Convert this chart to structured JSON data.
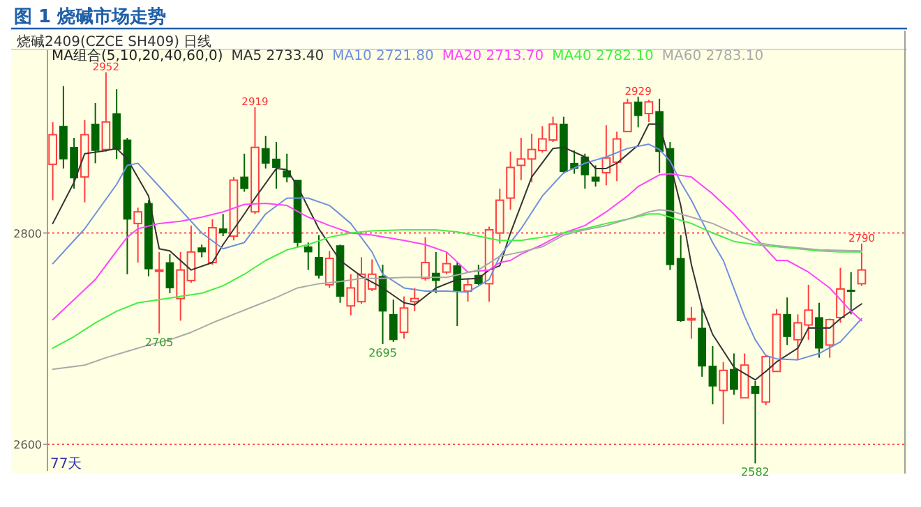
{
  "chart_data": {
    "type": "candlestick",
    "title": "图 1  烧碱市场走势",
    "subtitle": "烧碱2409(CZCE SH409)  日线",
    "legend_title": "MA组合(5,10,20,40,60,0)",
    "legend": "top left",
    "grid": "y",
    "categories": [
      null,
      null,
      null,
      null,
      null,
      null,
      null,
      null,
      null,
      null,
      null,
      null,
      null,
      null,
      null,
      null,
      null,
      null,
      null,
      null,
      null,
      null,
      null,
      null,
      null,
      null,
      null,
      null,
      null,
      null,
      null,
      null,
      null,
      null,
      null,
      null,
      null,
      null,
      null,
      null,
      null,
      null,
      null,
      null,
      null,
      null,
      null,
      null,
      null,
      null,
      null,
      null,
      null,
      null,
      null,
      null,
      null,
      null,
      null,
      null,
      null,
      null,
      null,
      null,
      null,
      null,
      null,
      null,
      null,
      null,
      null,
      null,
      null,
      null,
      null,
      null,
      null
    ],
    "ylim": [
      2575,
      2973
    ],
    "yticks": [
      2600,
      2800
    ],
    "ohlc": [
      [
        2865,
        2905,
        2831,
        2893
      ],
      [
        2901,
        2939,
        2861,
        2870
      ],
      [
        2881,
        2890,
        2842,
        2852
      ],
      [
        2853,
        2907,
        2829,
        2893
      ],
      [
        2903,
        2923,
        2866,
        2878
      ],
      [
        2879,
        2952,
        2877,
        2905
      ],
      [
        2913,
        2936,
        2870,
        2879
      ],
      [
        2888,
        2890,
        2761,
        2813
      ],
      [
        2809,
        2824,
        2772,
        2820
      ],
      [
        2828,
        2831,
        2759,
        2766
      ],
      [
        2764,
        2782,
        2705,
        2765
      ],
      [
        2772,
        2780,
        2743,
        2748
      ],
      [
        2738,
        2782,
        2717,
        2765
      ],
      [
        2755,
        2807,
        2753,
        2782
      ],
      [
        2786,
        2789,
        2777,
        2782
      ],
      [
        2772,
        2813,
        2770,
        2805
      ],
      [
        2804,
        2818,
        2797,
        2800
      ],
      [
        2797,
        2853,
        2793,
        2850
      ],
      [
        2853,
        2875,
        2839,
        2842
      ],
      [
        2820,
        2919,
        2818,
        2881
      ],
      [
        2880,
        2892,
        2861,
        2866
      ],
      [
        2870,
        2886,
        2842,
        2862
      ],
      [
        2859,
        2875,
        2848,
        2853
      ],
      [
        2850,
        2850,
        2787,
        2791
      ],
      [
        2787,
        2791,
        2765,
        2782
      ],
      [
        2777,
        2798,
        2757,
        2760
      ],
      [
        2751,
        2783,
        2748,
        2776
      ],
      [
        2788,
        2789,
        2734,
        2740
      ],
      [
        2731,
        2761,
        2722,
        2748
      ],
      [
        2735,
        2777,
        2733,
        2761
      ],
      [
        2747,
        2775,
        2745,
        2761
      ],
      [
        2759,
        2770,
        2695,
        2726
      ],
      [
        2723,
        2737,
        2697,
        2699
      ],
      [
        2706,
        2740,
        2700,
        2729
      ],
      [
        2735,
        2748,
        2726,
        2738
      ],
      [
        2757,
        2796,
        2755,
        2772
      ],
      [
        2762,
        2782,
        2743,
        2755
      ],
      [
        2763,
        2782,
        2761,
        2771
      ],
      [
        2769,
        2772,
        2712,
        2745
      ],
      [
        2745,
        2757,
        2735,
        2751
      ],
      [
        2760,
        2770,
        2751,
        2752
      ],
      [
        2752,
        2806,
        2735,
        2803
      ],
      [
        2800,
        2842,
        2790,
        2831
      ],
      [
        2833,
        2877,
        2822,
        2862
      ],
      [
        2864,
        2890,
        2850,
        2870
      ],
      [
        2870,
        2894,
        2848,
        2879
      ],
      [
        2878,
        2901,
        2876,
        2889
      ],
      [
        2888,
        2910,
        2886,
        2903
      ],
      [
        2903,
        2910,
        2856,
        2858
      ],
      [
        2866,
        2878,
        2856,
        2861
      ],
      [
        2872,
        2875,
        2842,
        2855
      ],
      [
        2853,
        2864,
        2844,
        2849
      ],
      [
        2857,
        2902,
        2845,
        2871
      ],
      [
        2867,
        2896,
        2849,
        2889
      ],
      [
        2896,
        2927,
        2896,
        2923
      ],
      [
        2924,
        2929,
        2900,
        2911
      ],
      [
        2913,
        2926,
        2905,
        2924
      ],
      [
        2915,
        2927,
        2857,
        2877
      ],
      [
        2880,
        2886,
        2765,
        2770
      ],
      [
        2776,
        2798,
        2716,
        2717
      ],
      [
        2718,
        2730,
        2700,
        2719
      ],
      [
        2710,
        2729,
        2664,
        2674
      ],
      [
        2674,
        2693,
        2638,
        2655
      ],
      [
        2651,
        2678,
        2619,
        2670
      ],
      [
        2671,
        2686,
        2647,
        2652
      ],
      [
        2644,
        2686,
        2644,
        2675
      ],
      [
        2655,
        2660,
        2582,
        2648
      ],
      [
        2640,
        2685,
        2637,
        2683
      ],
      [
        2669,
        2728,
        2669,
        2723
      ],
      [
        2723,
        2739,
        2694,
        2702
      ],
      [
        2699,
        2723,
        2680,
        2715
      ],
      [
        2713,
        2751,
        2699,
        2727
      ],
      [
        2720,
        2734,
        2682,
        2691
      ],
      [
        2694,
        2719,
        2682,
        2718
      ],
      [
        2720,
        2767,
        2715,
        2747
      ],
      [
        2746,
        2763,
        2723,
        2745
      ],
      [
        2752,
        2790,
        2750,
        2765
      ]
    ],
    "colors": [
      "#ff4040",
      "#006400",
      "#006400",
      "#ff4040",
      "#006400",
      "#ff4040",
      "#006400",
      "#006400",
      "#ff4040",
      "#006400",
      "#ff4040",
      "#006400",
      "#ff4040",
      "#ff4040",
      "#006400",
      "#ff4040",
      "#006400",
      "#ff4040",
      "#006400",
      "#ff4040",
      "#006400",
      "#006400",
      "#006400",
      "#006400",
      "#006400",
      "#006400",
      "#ff4040",
      "#006400",
      "#ff4040",
      "#ff4040",
      "#ff4040",
      "#006400",
      "#006400",
      "#ff4040",
      "#ff4040",
      "#ff4040",
      "#006400",
      "#ff4040",
      "#006400",
      "#ff4040",
      "#006400",
      "#ff4040",
      "#ff4040",
      "#ff4040",
      "#ff4040",
      "#ff4040",
      "#ff4040",
      "#ff4040",
      "#006400",
      "#006400",
      "#006400",
      "#006400",
      "#ff4040",
      "#ff4040",
      "#ff4040",
      "#006400",
      "#ff4040",
      "#006400",
      "#006400",
      "#006400",
      "#ff4040",
      "#006400",
      "#006400",
      "#ff4040",
      "#006400",
      "#ff4040",
      "#006400",
      "#ff4040",
      "#ff4040",
      "#006400",
      "#ff4040",
      "#ff4040",
      "#006400",
      "#ff4040",
      "#ff4040",
      "#006400",
      "#ff4040"
    ],
    "series": [
      {
        "name": "MA5 2733.40",
        "type": "line",
        "color": "#333333",
        "values": [
          2809,
          null,
          2848,
          2875,
          null,
          2878,
          2880,
          2870,
          null,
          2835,
          2785,
          2783,
          null,
          2765,
          null,
          2772,
          2789,
          null,
          2818,
          2833,
          null,
          2861,
          2860,
          2844,
          null,
          2804,
          null,
          2774,
          null,
          2759,
          null,
          2748,
          null,
          2734,
          2732,
          null,
          2748,
          null,
          2756,
          null,
          2757,
          2765,
          2769,
          2800,
          null,
          2853,
          null,
          2880,
          2881,
          null,
          2872,
          2861,
          2861,
          2866,
          null,
          2883,
          2903,
          2903,
          2866,
          2826,
          2770,
          2730,
          2704,
          null,
          2673,
          null,
          2661,
          2669,
          2678,
          null,
          2691,
          2710,
          null,
          2710,
          2719,
          null,
          2733
        ]
      },
      {
        "name": "MA10 2721.80",
        "type": "line",
        "color": "#6f8fdf",
        "values": [
          2771,
          null,
          null,
          2804,
          null,
          null,
          2846,
          2864,
          2866,
          null,
          2844,
          null,
          2822,
          null,
          2800,
          null,
          2785,
          null,
          2791,
          null,
          2818,
          null,
          2833,
          null,
          2833,
          null,
          2826,
          null,
          2809,
          null,
          2782,
          2761,
          null,
          2748,
          null,
          2745,
          null,
          2745,
          null,
          2744,
          null,
          2756,
          2778,
          null,
          2804,
          null,
          2835,
          null,
          2857,
          null,
          2866,
          null,
          2872,
          null,
          2880,
          null,
          2884,
          2879,
          2868,
          2848,
          2831,
          null,
          2791,
          2774,
          null,
          2721,
          2699,
          2684,
          2681,
          null,
          2680,
          null,
          2686,
          null,
          2697,
          2708,
          2719
        ]
      },
      {
        "name": "MA20 2713.70",
        "type": "line",
        "color": "#ff44ff",
        "values": [
          2718,
          null,
          2737,
          null,
          2756,
          null,
          2783,
          2796,
          2804,
          null,
          2809,
          null,
          2811,
          null,
          2815,
          null,
          2820,
          null,
          2827,
          null,
          2828,
          null,
          2826,
          null,
          2815,
          null,
          2807,
          null,
          2800,
          null,
          2798,
          null,
          null,
          2793,
          null,
          2789,
          null,
          2782,
          null,
          2763,
          null,
          2765,
          2772,
          2774,
          2780,
          null,
          2789,
          null,
          2800,
          null,
          2807,
          null,
          2820,
          null,
          2835,
          2844,
          null,
          2855,
          2856,
          null,
          2853,
          null,
          2837,
          null,
          2818,
          null,
          2796,
          null,
          2774,
          2774,
          null,
          2763,
          null,
          2748,
          null,
          2726,
          2717
        ]
      },
      {
        "name": "MA40 2782.10",
        "type": "line",
        "color": "#44ee44",
        "values": [
          2691,
          null,
          2702,
          null,
          2715,
          null,
          2726,
          null,
          2734,
          null,
          2737,
          null,
          2740,
          null,
          2743,
          null,
          2750,
          null,
          2761,
          null,
          2774,
          null,
          2784,
          null,
          2789,
          null,
          2796,
          null,
          2800,
          null,
          2802,
          null,
          null,
          2803,
          null,
          null,
          2803,
          null,
          2801,
          null,
          null,
          null,
          2793,
          null,
          2793,
          null,
          2796,
          null,
          2800,
          null,
          2804,
          null,
          2809,
          null,
          2813,
          null,
          2818,
          2818,
          2815,
          null,
          2809,
          null,
          2800,
          null,
          2792,
          null,
          2789,
          null,
          2787,
          null,
          2785,
          null,
          2783,
          null,
          2782,
          null,
          2782
        ]
      },
      {
        "name": "MA60 2783.10",
        "type": "line",
        "color": "#aaaaaa",
        "values": [
          2671,
          null,
          null,
          2675,
          null,
          2682,
          null,
          2688,
          null,
          2694,
          null,
          2699,
          null,
          2706,
          null,
          2715,
          null,
          2723,
          null,
          2731,
          null,
          2739,
          null,
          2748,
          null,
          2752,
          null,
          2754,
          null,
          2757,
          null,
          2757,
          null,
          2758,
          null,
          2758,
          null,
          2758,
          null,
          null,
          2765,
          null,
          2778,
          null,
          2782,
          null,
          2787,
          null,
          2798,
          null,
          2803,
          null,
          2807,
          null,
          2813,
          null,
          2820,
          2822,
          2821,
          null,
          2815,
          null,
          2809,
          null,
          2800,
          null,
          2791,
          null,
          2788,
          null,
          2786,
          null,
          2784,
          null,
          null,
          null,
          2783
        ]
      }
    ],
    "annotations": [
      {
        "text": "2952",
        "y": 2952
      },
      {
        "text": "2919",
        "y": 2919
      },
      {
        "text": "2929",
        "y": 2929
      },
      {
        "text": "2790",
        "y": 2790
      },
      {
        "text": "2705",
        "y": 2705
      },
      {
        "text": "2695",
        "y": 2695
      },
      {
        "text": "2582",
        "y": 2582
      },
      "77天"
    ]
  }
}
